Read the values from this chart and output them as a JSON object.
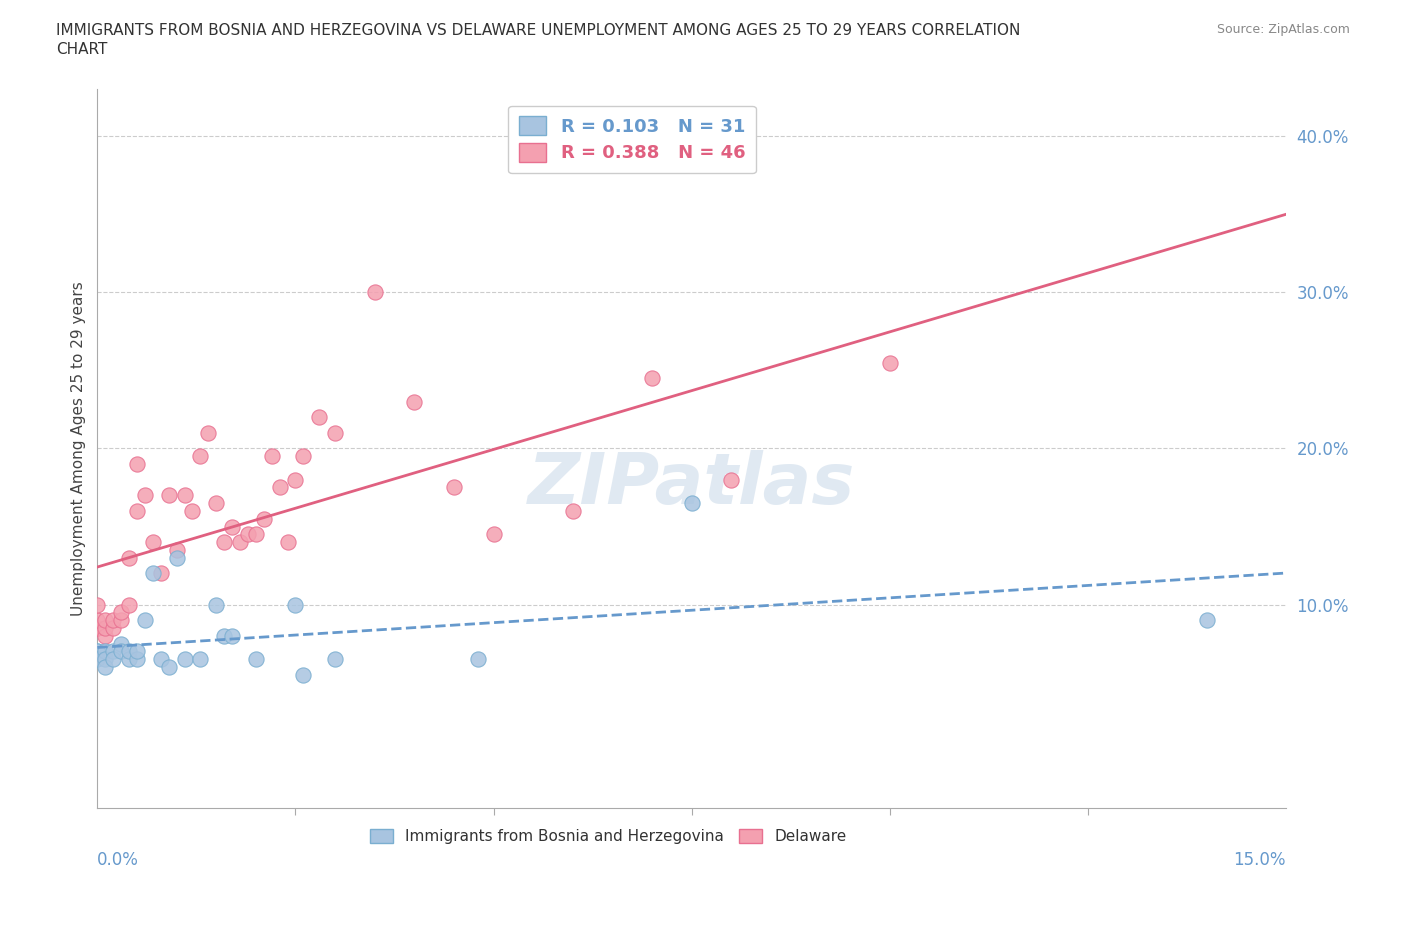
{
  "title_line1": "IMMIGRANTS FROM BOSNIA AND HERZEGOVINA VS DELAWARE UNEMPLOYMENT AMONG AGES 25 TO 29 YEARS CORRELATION",
  "title_line2": "CHART",
  "source": "Source: ZipAtlas.com",
  "ylabel": "Unemployment Among Ages 25 to 29 years",
  "right_yticks": [
    "10.0%",
    "20.0%",
    "30.0%",
    "40.0%"
  ],
  "right_ytick_vals": [
    0.1,
    0.2,
    0.3,
    0.4
  ],
  "xlim": [
    0.0,
    0.15
  ],
  "ylim": [
    -0.03,
    0.43
  ],
  "blue_label": "Immigrants from Bosnia and Herzegovina",
  "pink_label": "Delaware",
  "blue_R": 0.103,
  "blue_N": 31,
  "pink_R": 0.388,
  "pink_N": 46,
  "blue_color": "#a8c4e0",
  "pink_color": "#f4a0b0",
  "blue_edge": "#7aaed0",
  "pink_edge": "#e87090",
  "trend_blue_color": "#6699cc",
  "trend_pink_color": "#e06080",
  "watermark": "ZIPatlas",
  "blue_x": [
    0.0,
    0.0,
    0.0,
    0.001,
    0.001,
    0.001,
    0.002,
    0.002,
    0.003,
    0.003,
    0.004,
    0.004,
    0.005,
    0.005,
    0.006,
    0.007,
    0.008,
    0.009,
    0.01,
    0.011,
    0.013,
    0.015,
    0.016,
    0.017,
    0.02,
    0.025,
    0.026,
    0.03,
    0.048,
    0.075,
    0.14
  ],
  "blue_y": [
    0.07,
    0.07,
    0.065,
    0.07,
    0.065,
    0.06,
    0.07,
    0.065,
    0.075,
    0.07,
    0.065,
    0.07,
    0.065,
    0.07,
    0.09,
    0.12,
    0.065,
    0.06,
    0.13,
    0.065,
    0.065,
    0.1,
    0.08,
    0.08,
    0.065,
    0.1,
    0.055,
    0.065,
    0.065,
    0.165,
    0.09
  ],
  "pink_x": [
    0.0,
    0.0,
    0.0,
    0.0,
    0.001,
    0.001,
    0.001,
    0.002,
    0.002,
    0.003,
    0.003,
    0.004,
    0.004,
    0.005,
    0.005,
    0.006,
    0.007,
    0.008,
    0.009,
    0.01,
    0.011,
    0.012,
    0.013,
    0.014,
    0.015,
    0.016,
    0.017,
    0.018,
    0.019,
    0.02,
    0.021,
    0.022,
    0.023,
    0.024,
    0.025,
    0.026,
    0.028,
    0.03,
    0.035,
    0.04,
    0.045,
    0.05,
    0.06,
    0.07,
    0.08,
    0.1
  ],
  "pink_y": [
    0.085,
    0.085,
    0.09,
    0.1,
    0.08,
    0.085,
    0.09,
    0.085,
    0.09,
    0.09,
    0.095,
    0.1,
    0.13,
    0.16,
    0.19,
    0.17,
    0.14,
    0.12,
    0.17,
    0.135,
    0.17,
    0.16,
    0.195,
    0.21,
    0.165,
    0.14,
    0.15,
    0.14,
    0.145,
    0.145,
    0.155,
    0.195,
    0.175,
    0.14,
    0.18,
    0.195,
    0.22,
    0.21,
    0.3,
    0.23,
    0.175,
    0.145,
    0.16,
    0.245,
    0.18,
    0.255
  ]
}
